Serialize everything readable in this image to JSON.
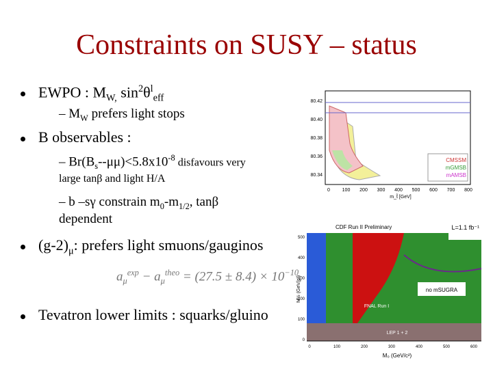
{
  "title": "Constraints on SUSY – status",
  "lines": [
    {
      "level": 1,
      "parts": [
        {
          "text": "EWPO : M"
        },
        {
          "sub": "W,"
        },
        {
          "text": " sin"
        },
        {
          "sup": "2"
        },
        {
          "text": "θ"
        },
        {
          "sup": "l"
        },
        {
          "sub": "eff"
        }
      ]
    },
    {
      "level": 2,
      "parts": [
        {
          "text": "– M"
        },
        {
          "sub": "W"
        },
        {
          "text": " prefers light stops"
        }
      ]
    },
    {
      "level": 1,
      "parts": [
        {
          "text": "B observables :"
        }
      ]
    },
    {
      "level": 2,
      "parts": [
        {
          "text": "– Br(B"
        },
        {
          "sub": "s"
        },
        {
          "text": "--μμ)<5.8x10"
        },
        {
          "sup": "-8"
        },
        {
          "small": " disfavours very"
        }
      ]
    },
    {
      "level": 3,
      "parts": [
        {
          "small": "large tanβ and light H/A"
        }
      ]
    },
    {
      "level": 2,
      "parts": [
        {
          "text": "– b –sγ constrain m"
        },
        {
          "sub": "0"
        },
        {
          "text": "-m"
        },
        {
          "sub": "1/2"
        },
        {
          "text": ",  tanβ"
        }
      ]
    },
    {
      "level": 3,
      "parts": [
        {
          "text": "dependent"
        }
      ]
    },
    {
      "level": 1,
      "parts": [
        {
          "text": "(g-2)"
        },
        {
          "sub": "μ"
        },
        {
          "text": ": prefers light smuons/gauginos"
        }
      ]
    },
    {
      "level": 4,
      "parts": [
        {
          "text": "a"
        },
        {
          "sub": "μ"
        },
        {
          "sup": "exp"
        },
        {
          "text": " − a"
        },
        {
          "sub": "μ"
        },
        {
          "sup": "theo"
        },
        {
          "text": " = (27.5 ± 8.4) × 10"
        },
        {
          "sup": "−10"
        },
        {
          "text": ","
        }
      ]
    },
    {
      "level": 1,
      "parts": [
        {
          "text": "Tevatron lower limits : squarks/gluino"
        }
      ]
    }
  ],
  "plot_top": {
    "yticks": [
      "80.42",
      "80.40",
      "80.38",
      "80.36",
      "80.34"
    ],
    "xticks": [
      "0",
      "100",
      "200",
      "300",
      "400",
      "500",
      "600",
      "700",
      "800"
    ],
    "xlabel": "m_t̃ [GeV]",
    "legend": [
      "CMSSM",
      "mGMSB",
      "mAMSB"
    ]
  },
  "plot_bottom": {
    "header": "CDF Run II Preliminary",
    "lumi": "L=1.1 fb⁻¹",
    "yticks": [
      "500",
      "400",
      "300",
      "200",
      "100",
      "0"
    ],
    "xticks": [
      "0",
      "100",
      "200",
      "300",
      "400",
      "500",
      "600"
    ],
    "xlabel": "M₀ (GeV/c²)",
    "ylabel": "M½ (GeV/c²)",
    "labels": [
      "no mSUGRA",
      "FNAL Run I",
      "LEP 1 + 2"
    ]
  }
}
